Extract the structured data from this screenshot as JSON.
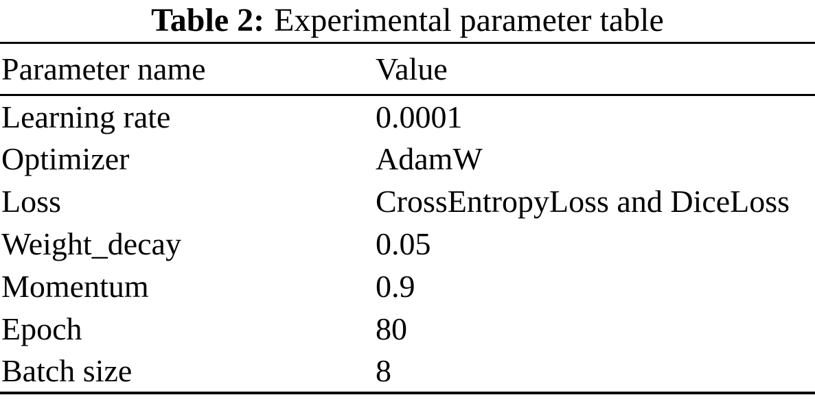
{
  "caption": {
    "label": "Table 2:",
    "text": "Experimental parameter table"
  },
  "table": {
    "columns": [
      "Parameter name",
      "Value"
    ],
    "rows": [
      {
        "name": "Learning rate",
        "value": "0.0001"
      },
      {
        "name": "Optimizer",
        "value": "AdamW"
      },
      {
        "name": "Loss",
        "value": "CrossEntropyLoss and DiceLoss"
      },
      {
        "name": "Weight_decay",
        "value": "0.05"
      },
      {
        "name": "Momentum",
        "value": "0.9"
      },
      {
        "name": "Epoch",
        "value": "80"
      },
      {
        "name": "Batch size",
        "value": "8"
      }
    ]
  },
  "colors": {
    "text": "#000000",
    "background": "#ffffff",
    "rule": "#000000"
  }
}
